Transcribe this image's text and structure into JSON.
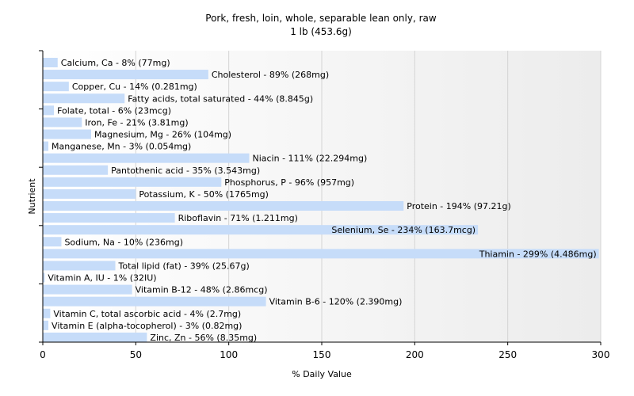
{
  "chart_data": {
    "type": "bar",
    "orientation": "horizontal",
    "title": "Pork, fresh, loin, whole, separable lean only, raw",
    "subtitle": "1 lb (453.6g)",
    "xlabel": "% Daily Value",
    "ylabel": "Nutrient",
    "xlim": [
      0,
      300
    ],
    "xticks": [
      0,
      50,
      100,
      150,
      200,
      250,
      300
    ],
    "grid": true,
    "bar_color": "#c6dcf9",
    "categories": [
      "Calcium, Ca",
      "Cholesterol",
      "Copper, Cu",
      "Fatty acids, total saturated",
      "Folate, total",
      "Iron, Fe",
      "Magnesium, Mg",
      "Manganese, Mn",
      "Niacin",
      "Pantothenic acid",
      "Phosphorus, P",
      "Potassium, K",
      "Protein",
      "Riboflavin",
      "Selenium, Se",
      "Sodium, Na",
      "Thiamin",
      "Total lipid (fat)",
      "Vitamin A, IU",
      "Vitamin B-12",
      "Vitamin B-6",
      "Vitamin C, total ascorbic acid",
      "Vitamin E (alpha-tocopherol)",
      "Zinc, Zn"
    ],
    "values": [
      8,
      89,
      14,
      44,
      6,
      21,
      26,
      3,
      111,
      35,
      96,
      50,
      194,
      71,
      234,
      10,
      299,
      39,
      1,
      48,
      120,
      4,
      3,
      56
    ],
    "labels": [
      "Calcium, Ca - 8% (77mg)",
      "Cholesterol - 89% (268mg)",
      "Copper, Cu - 14% (0.281mg)",
      "Fatty acids, total saturated - 44% (8.845g)",
      "Folate, total - 6% (23mcg)",
      "Iron, Fe - 21% (3.81mg)",
      "Magnesium, Mg - 26% (104mg)",
      "Manganese, Mn - 3% (0.054mg)",
      "Niacin - 111% (22.294mg)",
      "Pantothenic acid - 35% (3.543mg)",
      "Phosphorus, P - 96% (957mg)",
      "Potassium, K - 50% (1765mg)",
      "Protein - 194% (97.21g)",
      "Riboflavin - 71% (1.211mg)",
      "Selenium, Se - 234% (163.7mcg)",
      "Sodium, Na - 10% (236mg)",
      "Thiamin - 299% (4.486mg)",
      "Total lipid (fat) - 39% (25.67g)",
      "Vitamin A, IU - 1% (32IU)",
      "Vitamin B-12 - 48% (2.86mcg)",
      "Vitamin B-6 - 120% (2.390mg)",
      "Vitamin C, total ascorbic acid - 4% (2.7mg)",
      "Vitamin E (alpha-tocopherol) - 3% (0.82mg)",
      "Zinc, Zn - 56% (8.35mg)"
    ]
  }
}
